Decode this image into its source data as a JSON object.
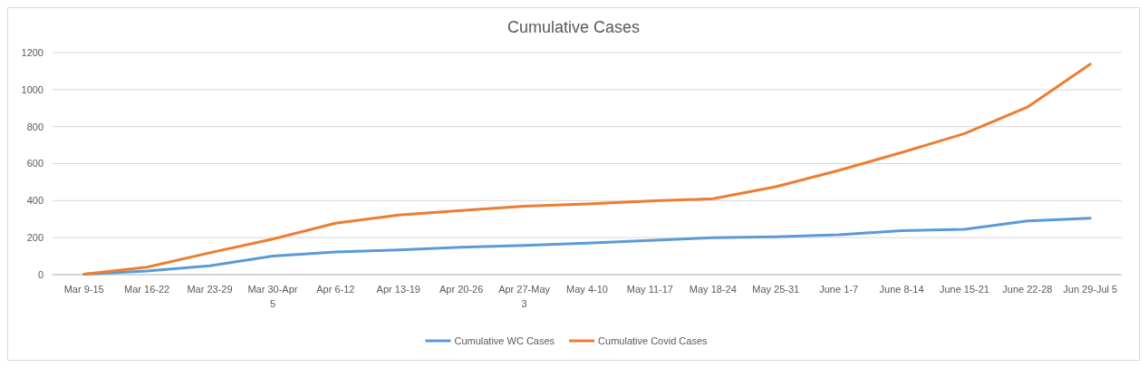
{
  "chart_data": {
    "type": "line",
    "title": "Cumulative Cases",
    "categories": [
      "Mar 9-15",
      "Mar 16-22",
      "Mar 23-29",
      "Mar 30-Apr 5",
      "Apr 6-12",
      "Apr 13-19",
      "Apr 20-26",
      "Apr 27-May 3",
      "May 4-10",
      "May 11-17",
      "May 18-24",
      "May 25-31",
      "June 1-7",
      "June 8-14",
      "June 15-21",
      "June 22-28",
      "Jun 29-Jul 5"
    ],
    "series": [
      {
        "name": "Cumulative WC Cases",
        "color": "#5b9bd5",
        "values": [
          2,
          20,
          48,
          100,
          123,
          133,
          148,
          158,
          170,
          185,
          200,
          205,
          215,
          238,
          245,
          290,
          305
        ]
      },
      {
        "name": "Cumulative Covid Cases",
        "color": "#ed7d31",
        "values": [
          2,
          40,
          118,
          192,
          278,
          322,
          347,
          370,
          382,
          398,
          410,
          475,
          563,
          660,
          762,
          905,
          1137
        ]
      }
    ],
    "ylim": [
      0,
      1200
    ],
    "yticks": [
      0,
      200,
      400,
      600,
      800,
      1000,
      1200
    ],
    "grid": "y",
    "legend": "bottom",
    "marker": "none",
    "line_style": "solid"
  }
}
